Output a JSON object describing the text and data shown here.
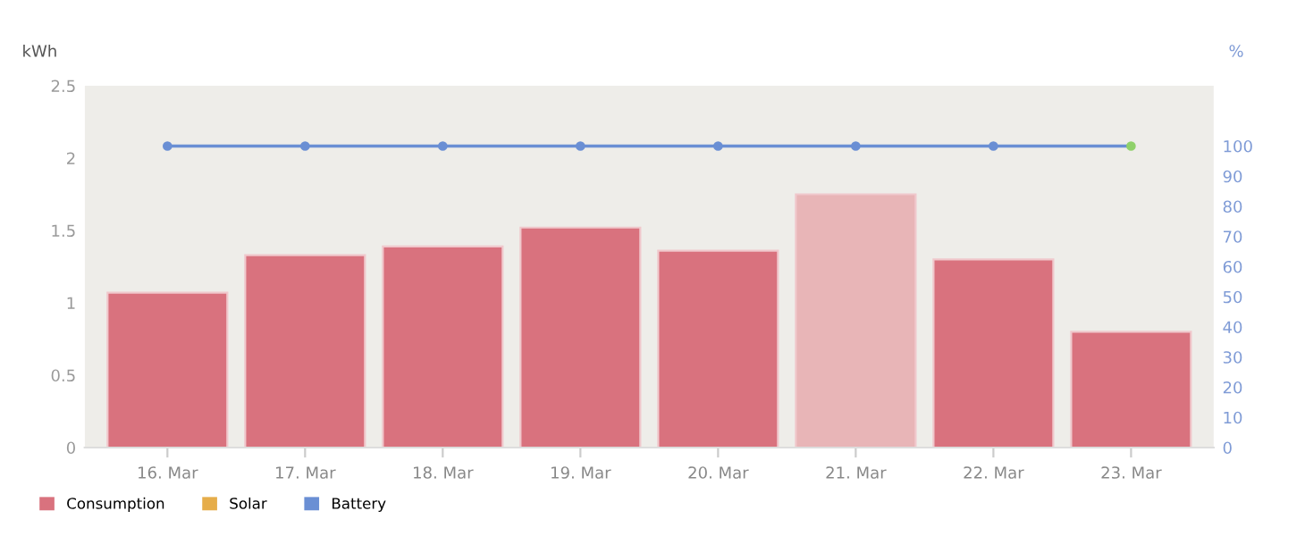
{
  "chart_data": {
    "type": "bar",
    "ylabel": "kWh",
    "y2label": "%",
    "categories": [
      "16. Mar",
      "17. Mar",
      "18. Mar",
      "19. Mar",
      "20. Mar",
      "21. Mar",
      "22. Mar",
      "23. Mar"
    ],
    "series": [
      {
        "name": "Consumption",
        "color": "#d9727e",
        "colors": [
          "#d9727e",
          "#d9727e",
          "#d9727e",
          "#d9727e",
          "#d9727e",
          "#e8b5b7",
          "#d9727e",
          "#d9727e"
        ],
        "values": [
          1.07,
          1.33,
          1.39,
          1.52,
          1.36,
          1.75,
          1.3,
          0.8
        ]
      },
      {
        "name": "Solar",
        "type": "line",
        "color": "#e6ad4a",
        "values": [
          null,
          null,
          null,
          null,
          null,
          null,
          null,
          null
        ]
      },
      {
        "name": "Battery",
        "type": "line",
        "axis": "y2",
        "color": "#6a8fd4",
        "colors": [
          "#6a8fd4",
          "#6a8fd4",
          "#6a8fd4",
          "#6a8fd4",
          "#6a8fd4",
          "#6a8fd4",
          "#6a8fd4",
          "#8fd16a"
        ],
        "values": [
          100,
          100,
          100,
          100,
          100,
          100,
          100,
          100
        ]
      }
    ],
    "ylim": [
      0,
      2.5
    ],
    "yticks": [
      0,
      0.5,
      1,
      1.5,
      2,
      2.5
    ],
    "y2lim": [
      0,
      120
    ],
    "y2ticks": [
      0,
      10,
      20,
      30,
      40,
      50,
      60,
      70,
      80,
      90,
      100
    ],
    "grid": false,
    "legend": "bottom left",
    "marker": "circle"
  }
}
